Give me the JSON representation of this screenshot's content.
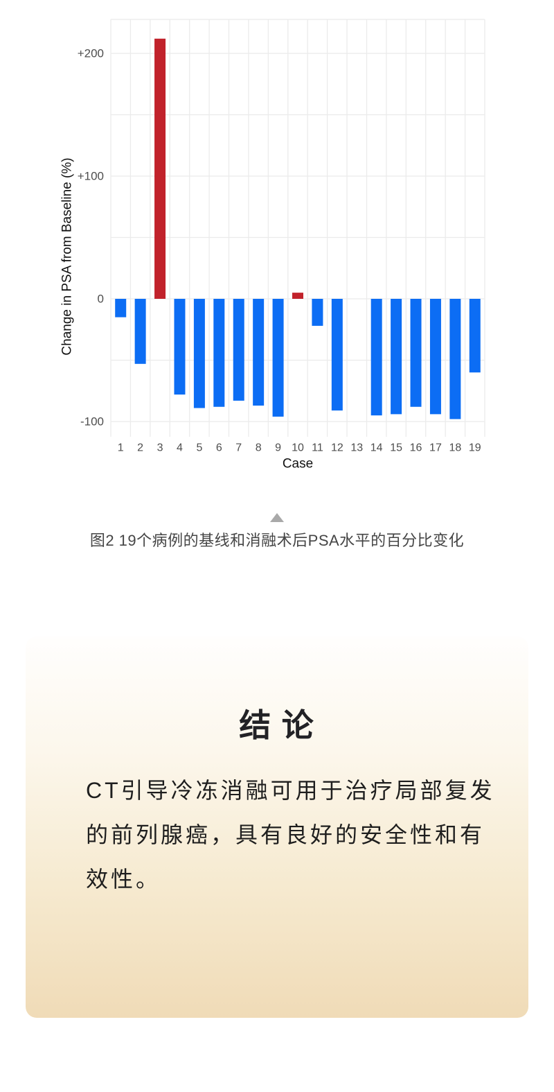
{
  "figure": {
    "caption": "图2  19个病例的基线和消融术后PSA水平的百分比变化",
    "collapse_icon": "triangle-up"
  },
  "chart_data": {
    "type": "bar",
    "title": "",
    "xlabel": "Case",
    "ylabel": "Change in PSA from Baseline (%)",
    "categories": [
      "1",
      "2",
      "3",
      "4",
      "5",
      "6",
      "7",
      "8",
      "9",
      "10",
      "11",
      "12",
      "13",
      "14",
      "15",
      "16",
      "17",
      "18",
      "19"
    ],
    "values": [
      -15,
      -53,
      212,
      -78,
      -89,
      -88,
      -83,
      -87,
      -96,
      5,
      -22,
      -91,
      0,
      -95,
      -94,
      -88,
      -94,
      -98,
      -60
    ],
    "ylim": [
      -113,
      228
    ],
    "yticks": [
      {
        "value": 200,
        "label": "+200"
      },
      {
        "value": 100,
        "label": "+100"
      },
      {
        "value": 0,
        "label": "0"
      },
      {
        "value": -100,
        "label": "-100"
      }
    ],
    "gridlines_y": [
      200,
      150,
      100,
      50,
      0,
      -50,
      -100
    ],
    "grid": true,
    "legend_position": "none",
    "colors": {
      "positive_bar": "#c1222b",
      "negative_bar": "#0c6df4",
      "gridline": "#ebebeb",
      "tick_text": "#4d4d4d",
      "axis_text": "#111111"
    }
  },
  "conclusion": {
    "title": "结 论",
    "lines": [
      "CT引导冷冻消融可用于治疗局部复发",
      "的前列腺癌，具有良好的安全性和有",
      "效性。"
    ],
    "panel_colors": {
      "top": "#fffefd",
      "bottom": "#f0dbb7"
    }
  }
}
